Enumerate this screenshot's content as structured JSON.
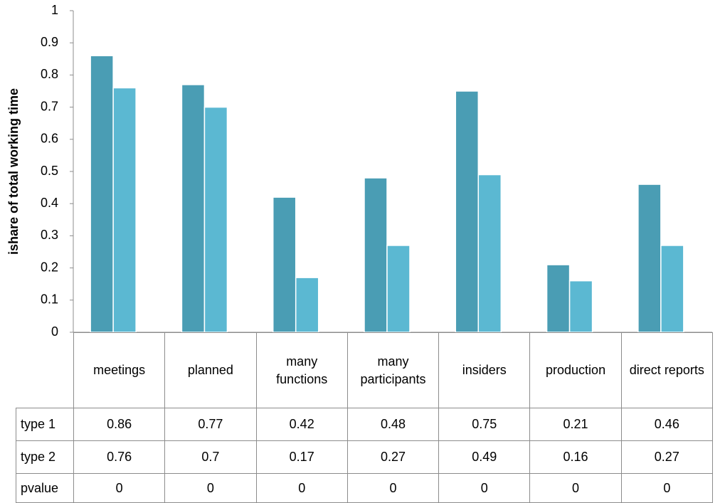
{
  "chart_data": {
    "type": "bar",
    "y_label": "ishare of total working time",
    "categories": [
      "meetings",
      "planned",
      "many functions",
      "many participants",
      "insiders",
      "production",
      "direct reports"
    ],
    "series": [
      {
        "name": "type 1",
        "color": "#4a9db4",
        "values": [
          0.86,
          0.77,
          0.42,
          0.48,
          0.75,
          0.21,
          0.46
        ]
      },
      {
        "name": "type 2",
        "color": "#5bb8d2",
        "values": [
          0.76,
          0.7,
          0.17,
          0.27,
          0.49,
          0.16,
          0.27
        ]
      }
    ],
    "pvalue": {
      "name": "pvalue",
      "values": [
        0,
        0,
        0,
        0,
        0,
        0,
        0
      ]
    },
    "ylim": [
      0,
      1
    ],
    "yticks": [
      0,
      0.1,
      0.2,
      0.3,
      0.4,
      0.5,
      0.6,
      0.7,
      0.8,
      0.9,
      1
    ]
  }
}
